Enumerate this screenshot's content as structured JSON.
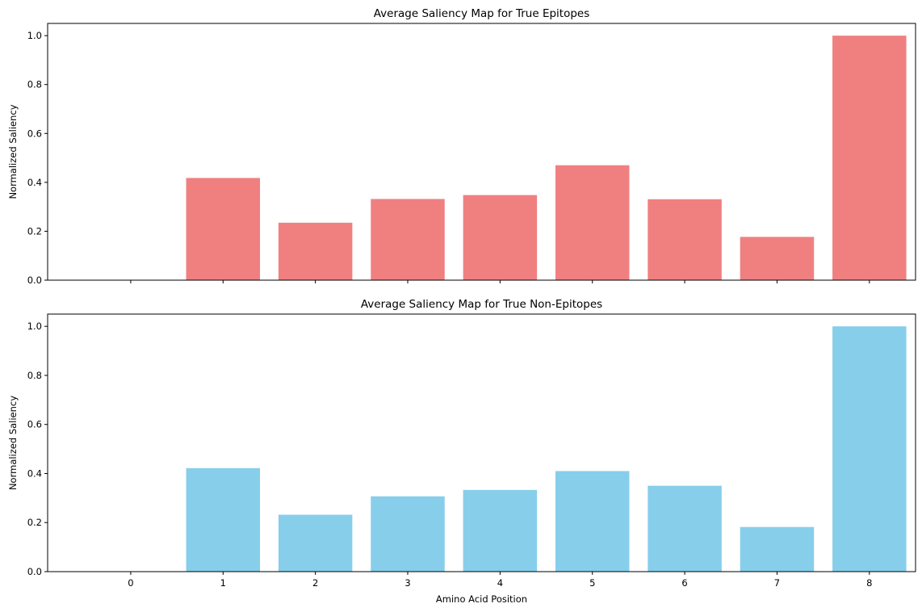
{
  "chart_data": [
    {
      "type": "bar",
      "title": "Average Saliency Map for True Epitopes",
      "xlabel": "",
      "ylabel": "Normalized Saliency",
      "categories": [
        0,
        1,
        2,
        3,
        4,
        5,
        6,
        7,
        8
      ],
      "values": [
        0.0,
        0.418,
        0.235,
        0.332,
        0.348,
        0.47,
        0.331,
        0.177,
        1.0
      ],
      "ylim": [
        0,
        1.05
      ],
      "yticks": [
        "0.0",
        "0.2",
        "0.4",
        "0.6",
        "0.8",
        "1.0"
      ],
      "show_xtick_labels": false,
      "color": "#f08080",
      "grid": false
    },
    {
      "type": "bar",
      "title": "Average Saliency Map for True Non-Epitopes",
      "xlabel": "Amino Acid Position",
      "ylabel": "Normalized Saliency",
      "categories": [
        0,
        1,
        2,
        3,
        4,
        5,
        6,
        7,
        8
      ],
      "values": [
        0.0,
        0.422,
        0.232,
        0.307,
        0.333,
        0.41,
        0.35,
        0.182,
        1.0
      ],
      "ylim": [
        0,
        1.05
      ],
      "yticks": [
        "0.0",
        "0.2",
        "0.4",
        "0.6",
        "0.8",
        "1.0"
      ],
      "show_xtick_labels": true,
      "color": "#87ceeb",
      "grid": false
    }
  ]
}
